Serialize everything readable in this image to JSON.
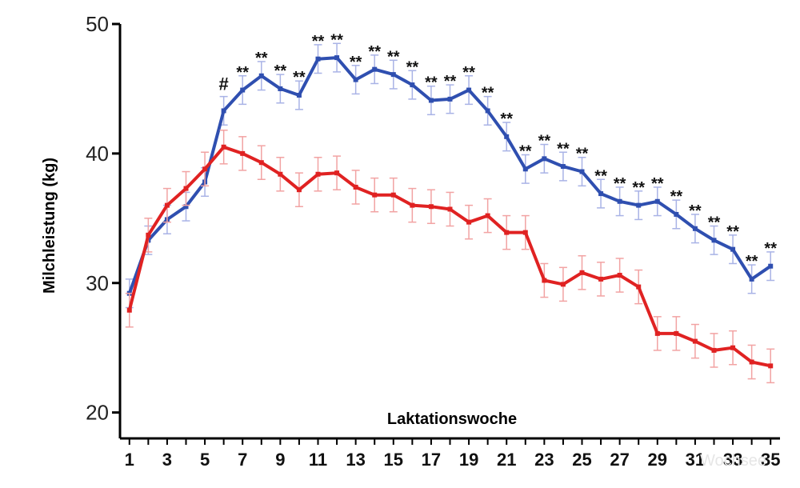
{
  "chart_data": {
    "type": "line",
    "xlabel": "Laktationswoche",
    "ylabel": "Milchleistung (kg)",
    "x": [
      1,
      2,
      3,
      4,
      5,
      6,
      7,
      8,
      9,
      10,
      11,
      12,
      13,
      14,
      15,
      16,
      17,
      18,
      19,
      20,
      21,
      22,
      23,
      24,
      25,
      26,
      27,
      28,
      29,
      30,
      31,
      32,
      33,
      34,
      35
    ],
    "x_tick_labels": [
      "1",
      "3",
      "5",
      "7",
      "9",
      "11",
      "13",
      "15",
      "17",
      "19",
      "21",
      "23",
      "25",
      "27",
      "29",
      "31",
      "33",
      "35"
    ],
    "y_ticks": [
      "20",
      "30",
      "40",
      "50"
    ],
    "ylim": [
      18,
      50
    ],
    "xlim": [
      0.5,
      35.5
    ],
    "grid": false,
    "series": [
      {
        "color": "#2f4fb0",
        "values": [
          29.2,
          33.3,
          34.9,
          35.9,
          37.8,
          43.3,
          44.9,
          46.0,
          45.0,
          44.5,
          47.3,
          47.4,
          45.7,
          46.5,
          46.1,
          45.3,
          44.1,
          44.2,
          44.9,
          43.3,
          41.3,
          38.8,
          39.6,
          39.0,
          38.6,
          36.9,
          36.3,
          36.0,
          36.3,
          35.3,
          34.2,
          33.3,
          32.6,
          30.3,
          31.3
        ],
        "error": 1.1
      },
      {
        "color": "#e02222",
        "values": [
          27.9,
          33.7,
          36.0,
          37.3,
          38.8,
          40.5,
          40.0,
          39.3,
          38.4,
          37.2,
          38.4,
          38.5,
          37.4,
          36.8,
          36.8,
          36.0,
          35.9,
          35.7,
          34.7,
          35.2,
          33.9,
          33.9,
          30.2,
          29.9,
          30.8,
          30.3,
          30.6,
          29.7,
          26.1,
          26.1,
          25.5,
          24.8,
          25.0,
          23.9,
          23.6
        ],
        "error": 1.3
      }
    ],
    "annotations": [
      {
        "x": 6,
        "text": "#"
      },
      {
        "x": 7,
        "text": "**"
      },
      {
        "x": 8,
        "text": "**"
      },
      {
        "x": 9,
        "text": "**"
      },
      {
        "x": 10,
        "text": "**"
      },
      {
        "x": 11,
        "text": "**"
      },
      {
        "x": 12,
        "text": "**"
      },
      {
        "x": 13,
        "text": "**"
      },
      {
        "x": 14,
        "text": "**"
      },
      {
        "x": 15,
        "text": "**"
      },
      {
        "x": 16,
        "text": "**"
      },
      {
        "x": 17,
        "text": "**"
      },
      {
        "x": 18,
        "text": "**"
      },
      {
        "x": 19,
        "text": "**"
      },
      {
        "x": 20,
        "text": "**"
      },
      {
        "x": 21,
        "text": "**"
      },
      {
        "x": 22,
        "text": "**"
      },
      {
        "x": 23,
        "text": "**"
      },
      {
        "x": 24,
        "text": "**"
      },
      {
        "x": 25,
        "text": "**"
      },
      {
        "x": 26,
        "text": "**"
      },
      {
        "x": 27,
        "text": "**"
      },
      {
        "x": 28,
        "text": "**"
      },
      {
        "x": 29,
        "text": "**"
      },
      {
        "x": 30,
        "text": "**"
      },
      {
        "x": 31,
        "text": "**"
      },
      {
        "x": 32,
        "text": "**"
      },
      {
        "x": 33,
        "text": "**"
      },
      {
        "x": 34,
        "text": "**"
      },
      {
        "x": 35,
        "text": "**"
      }
    ]
  },
  "watermark": "Wochsee"
}
